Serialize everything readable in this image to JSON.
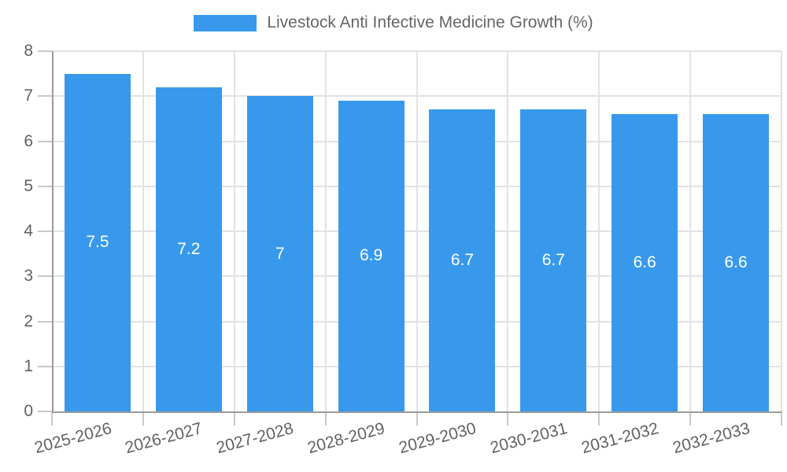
{
  "chart_data": {
    "type": "bar",
    "title": "",
    "legend": {
      "label": "Livestock Anti Infective Medicine Growth (%)",
      "position": "top"
    },
    "categories": [
      "2025-2026",
      "2026-2027",
      "2027-2028",
      "2028-2029",
      "2029-2030",
      "2030-2031",
      "2031-2032",
      "2032-2033"
    ],
    "series": [
      {
        "name": "Livestock Anti Infective Medicine Growth (%)",
        "values": [
          7.5,
          7.2,
          7,
          6.9,
          6.7,
          6.7,
          6.6,
          6.6
        ],
        "value_labels": [
          "7.5",
          "7.2",
          "7",
          "6.9",
          "6.7",
          "6.7",
          "6.6",
          "6.6"
        ]
      }
    ],
    "xlabel": "",
    "ylabel": "",
    "ylim": [
      0,
      8
    ],
    "yticks": [
      0,
      1,
      2,
      3,
      4,
      5,
      6,
      7,
      8
    ],
    "grid": true,
    "x_label_rotation_deg": -15,
    "colors": {
      "bar": "#3899EC",
      "grid_line": "#E2E2E2",
      "axis_line": "#9B9B9B",
      "tick_mark": "#C9C9C9",
      "axis_label": "#616161",
      "legend_text": "#666666",
      "value_label": "#FFFFFF",
      "background": "#FFFFFF"
    }
  }
}
